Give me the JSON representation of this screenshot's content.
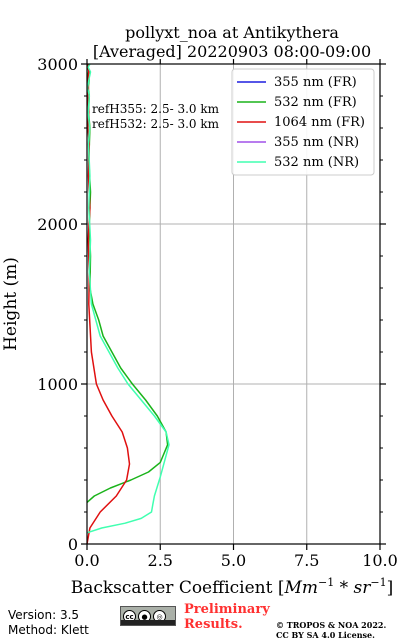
{
  "chart_data": {
    "type": "line",
    "title_line1": "pollyxt_noa at Antikythera",
    "title_line2": "[Averaged] 20220903 08:00-09:00",
    "xlabel": "Backscatter Coefficient [",
    "xlabel_units_math": "Mm",
    "xlabel_units_rest": "−1",
    "xlabel_sr": "sr",
    "xlabel_sr_exp": "−1",
    "xlabel_close": "]",
    "ylabel": "Height (m)",
    "xlim": [
      0,
      10
    ],
    "ylim": [
      0,
      3000
    ],
    "x_ticks": [
      0,
      2.5,
      5,
      7.5,
      10
    ],
    "x_tick_labels": [
      "0.0",
      "2.5",
      "5.0",
      "7.5",
      "10.0"
    ],
    "y_ticks": [
      0,
      1000,
      2000,
      3000
    ],
    "y_tick_labels": [
      "0",
      "1000",
      "2000",
      "3000"
    ],
    "grid": true,
    "legend_position": "top-right",
    "annotations": [
      "refH355:  2.5- 3.0 km",
      "refH532:  2.5- 3.0 km"
    ],
    "series": [
      {
        "name": "355 nm (FR)",
        "color": "#1f1fdf",
        "x": [],
        "y": []
      },
      {
        "name": "532 nm (FR)",
        "color": "#1ab31a",
        "x": [
          0.0,
          0.25,
          0.8,
          1.5,
          2.1,
          2.5,
          2.75,
          2.7,
          2.4,
          2.0,
          1.55,
          1.15,
          0.85,
          0.55,
          0.4,
          0.2,
          0.1,
          0.12,
          0.08,
          0.12,
          0.06,
          0.1,
          0.05,
          0.08,
          0.04,
          0.07,
          0.03,
          0.06,
          0.02,
          0.05
        ],
        "y": [
          260,
          300,
          350,
          400,
          450,
          510,
          620,
          700,
          800,
          900,
          1000,
          1100,
          1200,
          1300,
          1400,
          1500,
          1600,
          1800,
          2000,
          2200,
          2400,
          2600,
          2700,
          2800,
          2850,
          2900,
          2930,
          2960,
          2980,
          3000
        ]
      },
      {
        "name": "1064 nm (FR)",
        "color": "#e01010",
        "x": [
          0.0,
          0.1,
          0.45,
          1.0,
          1.35,
          1.45,
          1.38,
          1.2,
          0.85,
          0.55,
          0.32,
          0.15,
          0.06,
          0.08,
          0.04,
          0.1,
          0.05,
          0.08,
          0.03,
          0.06,
          0.02,
          0.05,
          0.03,
          0.06,
          0.02
        ],
        "y": [
          0,
          100,
          200,
          300,
          400,
          500,
          600,
          700,
          800,
          900,
          1000,
          1200,
          1500,
          1700,
          1900,
          2100,
          2300,
          2500,
          2600,
          2700,
          2800,
          2850,
          2900,
          2950,
          3000
        ]
      },
      {
        "name": "355 nm (NR)",
        "color": "#a050e8",
        "x": [],
        "y": []
      },
      {
        "name": "532 nm (NR)",
        "color": "#40ffb0",
        "x": [
          0.0,
          0.5,
          1.3,
          1.85,
          2.2,
          2.25,
          2.3,
          2.5,
          2.8,
          2.7,
          2.3,
          1.85,
          1.4,
          1.05,
          0.75,
          0.45,
          0.15,
          0.08,
          0.12,
          0.06,
          0.1,
          0.05,
          0.09,
          0.04,
          0.08,
          0.02,
          0.06,
          0.12,
          0.04,
          0.1
        ],
        "y": [
          70,
          100,
          130,
          160,
          200,
          250,
          300,
          420,
          620,
          700,
          800,
          900,
          1000,
          1100,
          1200,
          1300,
          1500,
          1700,
          1900,
          2100,
          2300,
          2500,
          2600,
          2700,
          2800,
          2850,
          2900,
          2950,
          2980,
          3000
        ]
      }
    ]
  },
  "footer": {
    "version": "Version: 3.5",
    "method": "Method: Klett",
    "cc_label": "cc",
    "preliminary_line1": "Preliminary",
    "preliminary_line2": "Results.",
    "copyright_line1": "© TROPOS & NOA 2022.",
    "copyright_line2": "CC BY SA 4.0 License."
  }
}
